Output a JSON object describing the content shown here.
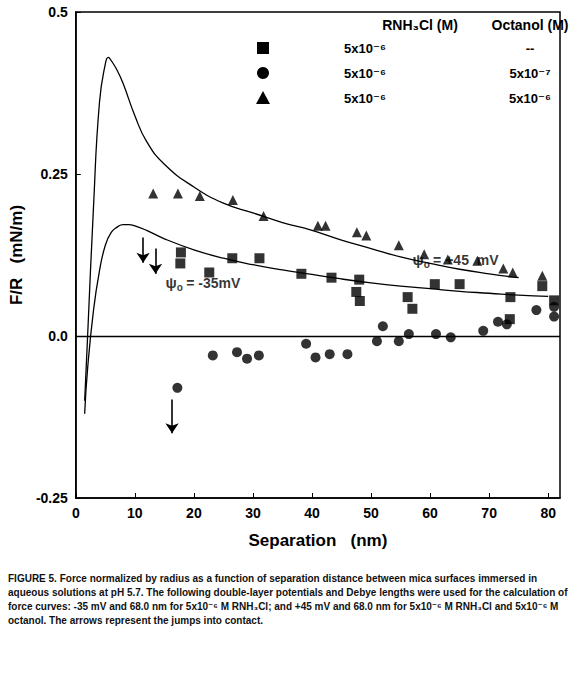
{
  "chart_data": {
    "type": "scatter",
    "xlabel": "Separation   (nm)",
    "ylabel": "F/R   (mN/m)",
    "xlim": [
      0,
      82
    ],
    "xticks": [
      0,
      10,
      20,
      30,
      40,
      50,
      60,
      70,
      80
    ],
    "ylim": [
      -0.25,
      0.5
    ],
    "yticks": [
      -0.25,
      {
        "value": 0,
        "label": "0.0"
      },
      0.25,
      0.5
    ],
    "grid": false,
    "legend_headers": [
      "RNH₃Cl (M)",
      "Octanol (M)"
    ],
    "series": [
      {
        "type": "scatter",
        "marker": "square",
        "color": "#000000",
        "rnh3cl": "5x10⁻⁶",
        "octanol": "--",
        "x": [
          17.8,
          17.7,
          22.6,
          26.5,
          31.1,
          38.2,
          43.3,
          47.5,
          48.1,
          48.0,
          56.2,
          57.0,
          60.8,
          65.0,
          73.6,
          73.5,
          79.0,
          81.0
        ],
        "values": [
          0.129,
          0.112,
          0.098,
          0.12,
          0.12,
          0.096,
          0.09,
          0.068,
          0.054,
          0.087,
          0.06,
          0.042,
          0.08,
          0.08,
          0.06,
          0.026,
          0.077,
          0.055
        ]
      },
      {
        "type": "scatter",
        "marker": "circle",
        "color": "#000000",
        "rnh3cl": "5x10⁻⁶",
        "octanol": "5x10⁻⁷",
        "x": [
          17.2,
          23.2,
          27.3,
          29.0,
          31.0,
          39.0,
          40.6,
          43.0,
          46.0,
          51.0,
          52.0,
          54.7,
          56.4,
          61.0,
          63.5,
          69.0,
          71.5,
          73.0,
          78.0,
          81.0,
          81.0
        ],
        "values": [
          -0.08,
          -0.03,
          -0.025,
          -0.035,
          -0.03,
          -0.012,
          -0.033,
          -0.028,
          -0.028,
          -0.008,
          0.015,
          -0.008,
          0.003,
          0.003,
          -0.002,
          0.008,
          0.022,
          0.018,
          0.04,
          0.03,
          0.045
        ]
      },
      {
        "type": "scatter",
        "marker": "triangle",
        "color": "#000000",
        "rnh3cl": "5x10⁻⁶",
        "octanol": "5x10⁻⁶",
        "x": [
          13.1,
          17.3,
          21.0,
          26.6,
          31.8,
          41.0,
          42.3,
          47.6,
          49.2,
          54.7,
          59.0,
          63.0,
          68.0,
          72.4,
          74.0,
          79.0
        ],
        "values": [
          0.22,
          0.22,
          0.216,
          0.21,
          0.185,
          0.17,
          0.17,
          0.16,
          0.155,
          0.14,
          0.126,
          0.118,
          0.116,
          0.104,
          0.098,
          0.093
        ]
      },
      {
        "type": "line",
        "color": "#000000",
        "x": [
          1.5,
          2,
          3,
          4,
          5,
          5.5,
          6,
          7,
          8,
          10,
          12,
          15,
          20,
          25,
          30,
          35,
          40,
          45,
          50,
          55,
          60,
          65,
          70,
          75
        ],
        "values": [
          -0.1,
          0.0,
          0.2,
          0.36,
          0.42,
          0.43,
          0.425,
          0.41,
          0.39,
          0.34,
          0.3,
          0.265,
          0.23,
          0.205,
          0.19,
          0.175,
          0.163,
          0.148,
          0.135,
          0.122,
          0.112,
          0.103,
          0.096,
          0.09
        ]
      },
      {
        "type": "line",
        "color": "#000000",
        "x": [
          1.5,
          2,
          3,
          4,
          5,
          6,
          7,
          8,
          9,
          10,
          12,
          15,
          20,
          25,
          30,
          35,
          40,
          45,
          50,
          55,
          60,
          65,
          70,
          75,
          80
        ],
        "values": [
          -0.12,
          -0.05,
          0.04,
          0.1,
          0.14,
          0.16,
          0.168,
          0.172,
          0.172,
          0.17,
          0.163,
          0.15,
          0.133,
          0.12,
          0.11,
          0.102,
          0.095,
          0.088,
          0.082,
          0.077,
          0.073,
          0.069,
          0.066,
          0.063,
          0.061
        ]
      }
    ],
    "annotations": [
      {
        "x": 57,
        "y": 0.118,
        "symbol": "ψ",
        "subscript": "o",
        "text": "= +45  mV"
      },
      {
        "x": 15.2,
        "y": 0.082,
        "symbol": "ψ",
        "subscript": "o",
        "text": "= -35mV"
      }
    ],
    "arrows": [
      {
        "x": 11.4,
        "y_from": 0.152,
        "y_to": 0.113
      },
      {
        "x": 13.5,
        "y_from": 0.135,
        "y_to": 0.096
      },
      {
        "x": 16.3,
        "y_from": -0.098,
        "y_to": -0.15
      }
    ],
    "caption": "FIGURE 5. Force normalized by radius as a function of separation distance between mica surfaces immersed in aqueous solutions at pH 5.7. The following double-layer potentials and Debye lengths were used for the calculation of force curves: -35 mV and 68.0 nm for 5x10⁻⁶ M RNH₃Cl; and +45 mV and 68.0 nm for 5x10⁻⁶ M RNH₃Cl and 5x10⁻⁶ M octanol. The arrows represent the jumps into contact."
  }
}
